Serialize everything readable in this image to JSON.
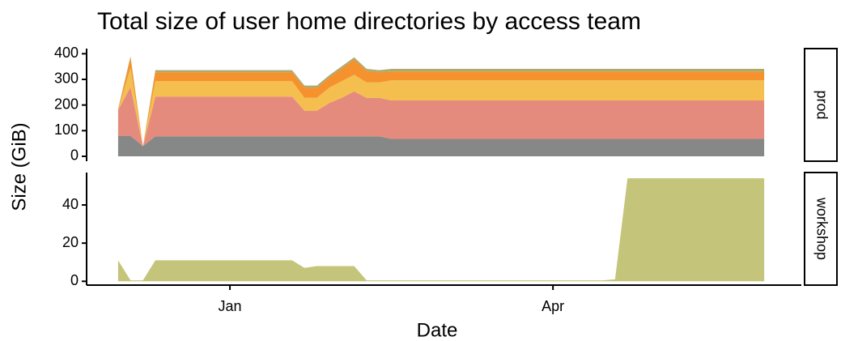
{
  "chart_data": {
    "type": "area",
    "title": "Total size of user home directories by access team",
    "x_label": "Date",
    "y_label": "Size (GiB)",
    "categories": [
      null,
      null,
      null,
      null,
      null,
      null,
      null,
      null,
      null,
      "Jan",
      null,
      null,
      null,
      null,
      null,
      null,
      null,
      null,
      null,
      null,
      null,
      null,
      null,
      null,
      null,
      null,
      null,
      null,
      null,
      null,
      null,
      null,
      null,
      null,
      null,
      "Apr",
      null,
      null,
      null,
      null,
      null,
      null,
      null,
      null,
      null,
      null,
      null,
      null,
      null,
      null,
      null,
      null,
      null
    ],
    "panels": [
      {
        "label": "prod",
        "ylim": [
          -19,
          420
        ],
        "yticks": [
          0,
          100,
          200,
          300,
          400
        ],
        "series": [
          {
            "color": "#868888",
            "values": [
              80,
              80,
              40,
              78,
              78,
              78,
              78,
              78,
              78,
              78,
              78,
              78,
              78,
              78,
              78,
              78,
              78,
              78,
              78,
              78,
              78,
              78,
              68,
              68,
              68,
              68,
              68,
              68,
              68,
              68,
              68,
              68,
              68,
              68,
              68,
              68,
              68,
              68,
              68,
              68,
              68,
              68,
              68,
              68,
              68,
              68,
              68,
              68,
              68,
              68,
              68,
              68,
              68
            ]
          },
          {
            "color": "#e58b7d",
            "values": [
              100,
              190,
              0,
              155,
              155,
              155,
              155,
              155,
              155,
              155,
              155,
              155,
              155,
              155,
              155,
              100,
              100,
              130,
              150,
              175,
              150,
              150,
              150,
              150,
              150,
              150,
              150,
              150,
              150,
              150,
              150,
              150,
              150,
              150,
              150,
              150,
              150,
              150,
              150,
              150,
              150,
              150,
              150,
              150,
              150,
              150,
              150,
              150,
              150,
              150,
              150,
              150,
              150
            ]
          },
          {
            "color": "#f4bf4f",
            "values": [
              0,
              75,
              0,
              60,
              60,
              60,
              60,
              60,
              60,
              60,
              60,
              60,
              60,
              60,
              60,
              50,
              50,
              60,
              65,
              65,
              60,
              60,
              78,
              78,
              78,
              78,
              78,
              78,
              78,
              78,
              78,
              78,
              78,
              78,
              78,
              78,
              78,
              78,
              78,
              78,
              78,
              78,
              78,
              78,
              78,
              78,
              78,
              78,
              78,
              78,
              78,
              78,
              78
            ]
          },
          {
            "color": "#f5922e",
            "values": [
              0,
              40,
              0,
              35,
              35,
              35,
              35,
              35,
              35,
              35,
              35,
              35,
              35,
              35,
              35,
              40,
              40,
              40,
              50,
              60,
              45,
              40,
              35,
              35,
              35,
              35,
              35,
              35,
              35,
              35,
              35,
              35,
              35,
              35,
              35,
              35,
              35,
              35,
              35,
              35,
              35,
              35,
              35,
              35,
              35,
              35,
              35,
              35,
              35,
              35,
              35,
              35,
              35
            ]
          },
          {
            "color": "#a9ab6f",
            "values": [
              5,
              5,
              0,
              8,
              8,
              8,
              8,
              8,
              8,
              8,
              8,
              8,
              8,
              8,
              8,
              8,
              8,
              8,
              8,
              8,
              8,
              8,
              10,
              10,
              10,
              10,
              10,
              10,
              10,
              10,
              10,
              10,
              10,
              10,
              10,
              10,
              10,
              10,
              10,
              10,
              10,
              10,
              10,
              10,
              10,
              10,
              10,
              10,
              10,
              10,
              10,
              10,
              10
            ]
          }
        ]
      },
      {
        "label": "workshop",
        "ylim": [
          -2,
          57
        ],
        "yticks": [
          0,
          20,
          40
        ],
        "series": [
          {
            "color": "#c4c47a",
            "values": [
              11,
              0.5,
              0.5,
              11,
              11,
              11,
              11,
              11,
              11,
              11,
              11,
              11,
              11,
              11,
              11,
              7,
              8,
              8,
              8,
              8,
              0.5,
              0.5,
              0.5,
              0.5,
              0.5,
              0.5,
              0.5,
              0.5,
              0.5,
              0.5,
              0.5,
              0.5,
              0.5,
              0.5,
              0.5,
              0.5,
              0.5,
              0.5,
              0.5,
              0.5,
              1,
              54,
              54,
              54,
              54,
              54,
              54,
              54,
              54,
              54,
              54,
              54,
              54
            ]
          }
        ]
      }
    ]
  }
}
